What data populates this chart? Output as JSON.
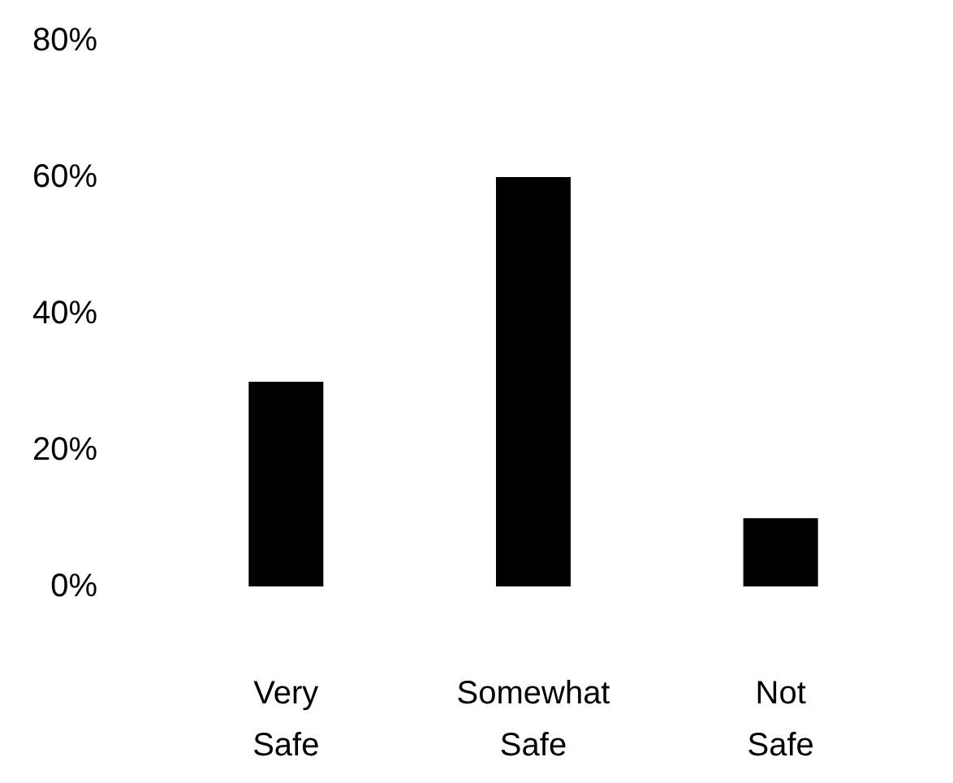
{
  "chart_data": {
    "type": "bar",
    "categories": [
      "Very Safe",
      "Somewhat Safe",
      "Not Safe"
    ],
    "values": [
      30,
      60,
      10
    ],
    "color": "#000000",
    "ylim": [
      0,
      80
    ],
    "yticks": [
      {
        "value": 0,
        "label": "0%"
      },
      {
        "value": 20,
        "label": "20%"
      },
      {
        "value": 40,
        "label": "40%"
      },
      {
        "value": 60,
        "label": "60%"
      },
      {
        "value": 80,
        "label": "80%"
      }
    ],
    "grid": false
  }
}
